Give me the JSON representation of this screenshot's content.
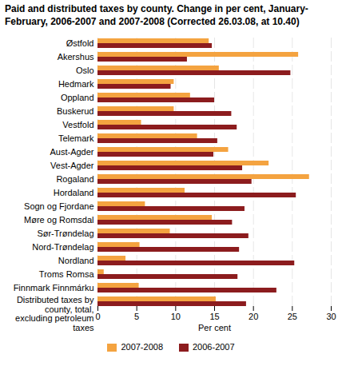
{
  "chart_data": {
    "type": "bar",
    "orientation": "horizontal",
    "title": "Paid and distributed taxes by county. Change in per cent, January-February, 2006-2007 and 2007-2008 (Corrected 26.03.08, at 10.40)",
    "xlabel": "Per cent",
    "categories": [
      "Østfold",
      "Akershus",
      "Oslo",
      "Hedmark",
      "Oppland",
      "Buskerud",
      "Vestfold",
      "Telemark",
      "Aust-Agder",
      "Vest-Agder",
      "Rogaland",
      "Hordaland",
      "Sogn og Fjordane",
      "Møre og Romsdal",
      "Sør-Trøndelag",
      "Nord-Trøndelag",
      "Nordland",
      "Troms Romsa",
      "Finnmark Finnmárku",
      "Distributed taxes by county, total, excluding petroleum taxes"
    ],
    "series": [
      {
        "name": "2007-2008",
        "color": "#f4a340",
        "values": [
          14.3,
          25.8,
          15.6,
          9.8,
          11.9,
          9.8,
          5.6,
          12.8,
          16.8,
          22.0,
          27.2,
          11.2,
          6.1,
          14.7,
          9.3,
          5.4,
          3.6,
          0.8,
          5.3,
          15.2
        ]
      },
      {
        "name": "2006-2007",
        "color": "#8c1c1e",
        "values": [
          14.7,
          11.5,
          24.8,
          9.4,
          15.0,
          17.2,
          17.9,
          15.4,
          14.9,
          18.6,
          19.8,
          25.5,
          18.9,
          17.3,
          19.4,
          18.2,
          25.3,
          18.0,
          23.0,
          19.1
        ]
      }
    ],
    "xlim": [
      0,
      30
    ],
    "xticks": [
      0,
      5,
      10,
      15,
      20,
      25,
      30
    ],
    "grid": true,
    "legend": "bottom"
  }
}
